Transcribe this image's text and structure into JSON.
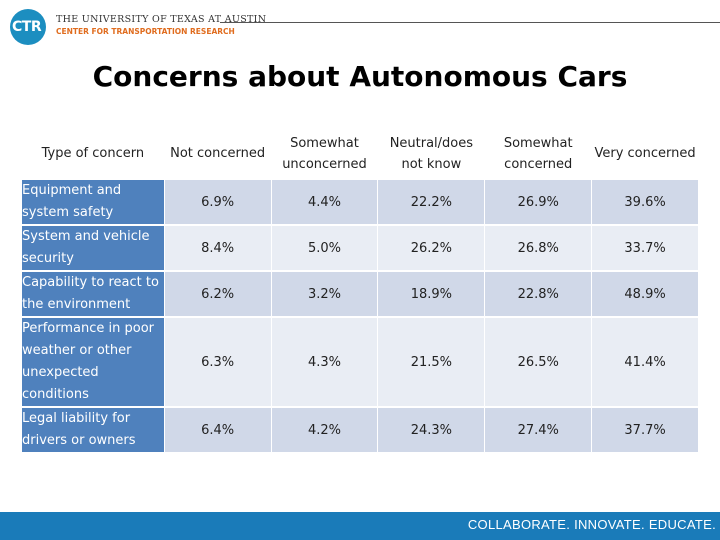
{
  "header": {
    "logo_text": "CTR",
    "university": "THE UNIVERSITY OF TEXAS AT AUSTIN",
    "center": "CENTER FOR TRANSPORTATION RESEARCH"
  },
  "title": "Concerns about Autonomous Cars",
  "table": {
    "corner_label": "Type of concern",
    "columns": [
      "Not concerned",
      "Somewhat unconcerned",
      "Neutral/does not know",
      "Somewhat concerned",
      "Very concerned"
    ],
    "rows": [
      {
        "label": "Equipment and system safety",
        "values": [
          "6.9%",
          "4.4%",
          "22.2%",
          "26.9%",
          "39.6%"
        ]
      },
      {
        "label": "System and vehicle security",
        "values": [
          "8.4%",
          "5.0%",
          "26.2%",
          "26.8%",
          "33.7%"
        ]
      },
      {
        "label": "Capability to react to the environment",
        "values": [
          "6.2%",
          "3.2%",
          "18.9%",
          "22.8%",
          "48.9%"
        ]
      },
      {
        "label": "Performance in poor weather or other unexpected conditions",
        "values": [
          "6.3%",
          "4.3%",
          "21.5%",
          "26.5%",
          "41.4%"
        ]
      },
      {
        "label": "Legal liability for drivers or owners",
        "values": [
          "6.4%",
          "4.2%",
          "24.3%",
          "27.4%",
          "37.7%"
        ]
      }
    ]
  },
  "footer": {
    "tagline": "COLLABORATE. INNOVATE. EDUCATE."
  },
  "colors": {
    "row_header_bg": "#4f81bd",
    "row_odd_bg": "#d0d8e8",
    "row_even_bg": "#e9edf4",
    "footer_bg": "#1a7bb9",
    "logo_blue": "#1c8ec0",
    "center_orange": "#e06c1e"
  }
}
